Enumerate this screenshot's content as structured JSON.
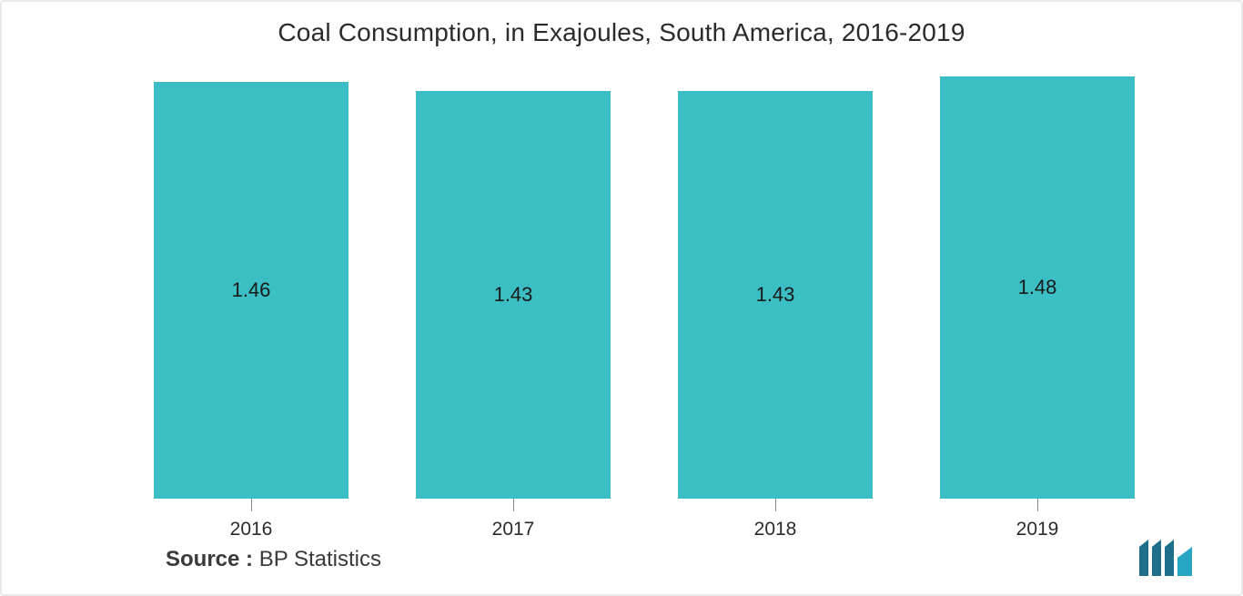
{
  "chart": {
    "type": "bar",
    "title": "Coal Consumption, in Exajoules, South America, 2016-2019",
    "title_fontsize": 28,
    "title_color": "#2b2b2b",
    "background_color": "#ffffff",
    "border_color": "#e9e9e9",
    "categories": [
      "2016",
      "2017",
      "2018",
      "2019"
    ],
    "values": [
      1.46,
      1.43,
      1.43,
      1.48
    ],
    "value_labels": [
      "1.46",
      "1.43",
      "1.43",
      "1.48"
    ],
    "bar_color": "#3cbfc4",
    "bar_width_pct": 74,
    "ymax": 1.48,
    "label_fontsize": 22,
    "label_color": "#1a1a1a",
    "category_fontsize": 21,
    "category_color": "#2b2b2b",
    "tick_color": "#888888",
    "source_label": "Source :",
    "source_text": "BP Statistics",
    "source_fontsize": 24,
    "logo_color": "#1e6f8c"
  }
}
